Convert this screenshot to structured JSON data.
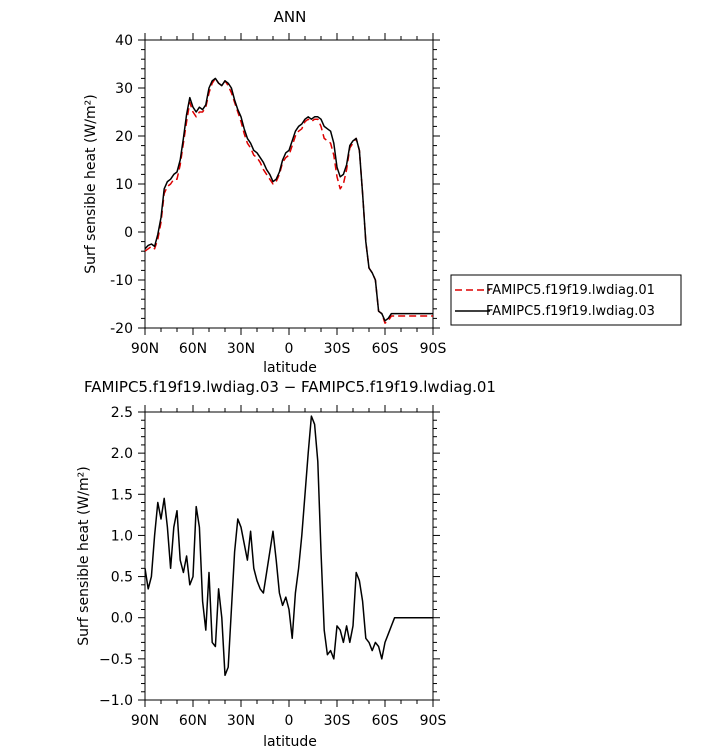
{
  "chart_data": [
    {
      "type": "line",
      "title": "ANN",
      "xlabel": "latitude",
      "ylabel": "Surf sensible heat (W/m²)",
      "xlim": [
        90,
        -90
      ],
      "ylim": [
        -20,
        40
      ],
      "x_ticks": [
        {
          "value": 90,
          "label": "90N"
        },
        {
          "value": 60,
          "label": "60N"
        },
        {
          "value": 30,
          "label": "30N"
        },
        {
          "value": 0,
          "label": "0"
        },
        {
          "value": -30,
          "label": "30S"
        },
        {
          "value": -60,
          "label": "60S"
        },
        {
          "value": -90,
          "label": "90S"
        }
      ],
      "y_ticks": [
        40,
        30,
        20,
        10,
        0,
        -10,
        -20
      ],
      "legend": "right",
      "series": [
        {
          "name": "FAMIPC5.f19f19.lwdiag.01",
          "color": "#dd0000",
          "dash": true,
          "x": [
            90,
            88,
            86,
            84,
            82,
            80,
            78,
            76,
            74,
            72,
            70,
            68,
            66,
            64,
            62,
            60,
            58,
            56,
            54,
            52,
            50,
            48,
            46,
            44,
            42,
            40,
            38,
            36,
            34,
            32,
            30,
            28,
            26,
            24,
            22,
            20,
            18,
            16,
            14,
            12,
            10,
            8,
            6,
            4,
            2,
            0,
            -2,
            -4,
            -6,
            -8,
            -10,
            -12,
            -14,
            -16,
            -18,
            -20,
            -22,
            -24,
            -26,
            -28,
            -30,
            -32,
            -34,
            -36,
            -38,
            -40,
            -42,
            -44,
            -46,
            -48,
            -50,
            -52,
            -54,
            -56,
            -58,
            -60,
            -62,
            -64,
            -66,
            -68,
            -70,
            -72,
            -74,
            -76,
            -78,
            -80,
            -82,
            -84,
            -86,
            -88,
            -90
          ],
          "values": [
            -4.0,
            -3.5,
            -3.0,
            -3.5,
            -1.5,
            2.0,
            8.0,
            9.5,
            10.0,
            11.0,
            11.0,
            14.0,
            18.5,
            23.0,
            27.0,
            25.0,
            24.0,
            25.0,
            25.0,
            26.0,
            29.0,
            31.0,
            32.0,
            31.0,
            30.5,
            31.5,
            30.5,
            29.0,
            27.0,
            25.0,
            23.0,
            20.5,
            18.5,
            17.5,
            16.0,
            15.5,
            14.5,
            13.0,
            12.0,
            11.0,
            10.0,
            10.5,
            12.0,
            14.5,
            15.5,
            16.0,
            18.0,
            20.0,
            21.0,
            21.5,
            23.0,
            23.5,
            23.0,
            23.5,
            23.5,
            22.0,
            19.5,
            19.0,
            18.5,
            16.0,
            11.5,
            9.0,
            10.0,
            13.0,
            17.5,
            18.5,
            19.5,
            17.0,
            8.0,
            -2.0,
            -7.5,
            -8.5,
            -10.0,
            -16.5,
            -17.0,
            -19.0,
            -18.5,
            -17.5,
            -17.5,
            -17.5,
            -17.5,
            -17.5,
            -17.5,
            -17.5,
            -17.5,
            -17.5,
            -17.5,
            -17.5,
            -17.5,
            -17.5,
            -17.5
          ]
        },
        {
          "name": "FAMIPC5.f19f19.lwdiag.03",
          "color": "#000000",
          "dash": false,
          "x": [
            90,
            88,
            86,
            84,
            82,
            80,
            78,
            76,
            74,
            72,
            70,
            68,
            66,
            64,
            62,
            60,
            58,
            56,
            54,
            52,
            50,
            48,
            46,
            44,
            42,
            40,
            38,
            36,
            34,
            32,
            30,
            28,
            26,
            24,
            22,
            20,
            18,
            16,
            14,
            12,
            10,
            8,
            6,
            4,
            2,
            0,
            -2,
            -4,
            -6,
            -8,
            -10,
            -12,
            -14,
            -16,
            -18,
            -20,
            -22,
            -24,
            -26,
            -28,
            -30,
            -32,
            -34,
            -36,
            -38,
            -40,
            -42,
            -44,
            -46,
            -48,
            -50,
            -52,
            -54,
            -56,
            -58,
            -60,
            -62,
            -64,
            -66,
            -68,
            -70,
            -72,
            -74,
            -76,
            -78,
            -80,
            -82,
            -84,
            -86,
            -88,
            -90
          ],
          "values": [
            -3.5,
            -2.8,
            -2.5,
            -3.0,
            -0.5,
            3.0,
            9.0,
            10.5,
            11.0,
            12.0,
            12.5,
            15.0,
            19.5,
            24.5,
            28.0,
            26.0,
            25.0,
            26.0,
            25.5,
            26.5,
            30.0,
            31.5,
            32.0,
            31.0,
            30.5,
            31.5,
            31.0,
            30.0,
            27.5,
            25.5,
            24.0,
            21.5,
            19.5,
            18.5,
            17.0,
            16.5,
            15.5,
            14.5,
            13.0,
            12.0,
            10.5,
            11.0,
            12.5,
            15.0,
            16.5,
            17.0,
            19.0,
            21.0,
            22.0,
            22.5,
            23.5,
            24.0,
            23.5,
            24.0,
            24.0,
            23.5,
            22.0,
            21.5,
            21.0,
            18.5,
            13.5,
            11.5,
            12.0,
            14.0,
            18.0,
            19.0,
            19.5,
            17.0,
            8.0,
            -2.0,
            -7.5,
            -8.5,
            -10.0,
            -16.5,
            -17.0,
            -18.5,
            -18.0,
            -17.0,
            -17.0,
            -17.0,
            -17.0,
            -17.0,
            -17.0,
            -17.0,
            -17.0,
            -17.0,
            -17.0,
            -17.0,
            -17.0,
            -17.0,
            -17.0
          ]
        }
      ]
    },
    {
      "type": "line",
      "title": "FAMIPC5.f19f19.lwdiag.03 − FAMIPC5.f19f19.lwdiag.01",
      "xlabel": "latitude",
      "ylabel": "Surf sensible heat (W/m²)",
      "xlim": [
        90,
        -90
      ],
      "ylim": [
        -1.0,
        2.5
      ],
      "x_ticks": [
        {
          "value": 90,
          "label": "90N"
        },
        {
          "value": 60,
          "label": "60N"
        },
        {
          "value": 30,
          "label": "30N"
        },
        {
          "value": 0,
          "label": "0"
        },
        {
          "value": -30,
          "label": "30S"
        },
        {
          "value": -60,
          "label": "60S"
        },
        {
          "value": -90,
          "label": "90S"
        }
      ],
      "y_ticks": [
        2.5,
        2.0,
        1.5,
        1.0,
        0.5,
        0.0,
        -0.5,
        -1.0
      ],
      "y_tick_labels": [
        "2.5",
        "2.0",
        "1.5",
        "1.0",
        "0.5",
        "0.0",
        "−0.5",
        "−1.0"
      ],
      "series": [
        {
          "color": "#000000",
          "x": [
            90,
            88,
            86,
            84,
            82,
            80,
            78,
            76,
            74,
            72,
            70,
            68,
            66,
            64,
            62,
            60,
            58,
            56,
            54,
            52,
            50,
            48,
            46,
            44,
            42,
            40,
            38,
            36,
            34,
            32,
            30,
            28,
            26,
            24,
            22,
            20,
            18,
            16,
            14,
            12,
            10,
            8,
            6,
            4,
            2,
            0,
            -2,
            -4,
            -6,
            -8,
            -10,
            -12,
            -14,
            -16,
            -18,
            -20,
            -22,
            -24,
            -26,
            -28,
            -30,
            -32,
            -34,
            -36,
            -38,
            -40,
            -42,
            -44,
            -46,
            -48,
            -50,
            -52,
            -54,
            -56,
            -58,
            -60,
            -62,
            -64,
            -66,
            -68,
            -70,
            -72,
            -74,
            -76,
            -78,
            -80,
            -82,
            -84,
            -86,
            -88,
            -90
          ],
          "values": [
            0.6,
            0.35,
            0.5,
            1.0,
            1.4,
            1.2,
            1.45,
            1.1,
            0.6,
            1.1,
            1.3,
            0.7,
            0.55,
            0.75,
            0.4,
            0.5,
            1.35,
            1.1,
            0.2,
            -0.15,
            0.55,
            -0.3,
            -0.35,
            0.35,
            0.0,
            -0.7,
            -0.6,
            0.1,
            0.8,
            1.2,
            1.1,
            0.9,
            0.7,
            1.05,
            0.6,
            0.45,
            0.35,
            0.3,
            0.55,
            0.8,
            1.05,
            0.7,
            0.3,
            0.15,
            0.25,
            0.1,
            -0.25,
            0.3,
            0.6,
            1.0,
            1.5,
            2.0,
            2.45,
            2.35,
            1.9,
            0.8,
            -0.15,
            -0.45,
            -0.4,
            -0.5,
            -0.1,
            -0.15,
            -0.3,
            -0.1,
            -0.3,
            -0.1,
            0.55,
            0.45,
            0.2,
            -0.25,
            -0.3,
            -0.4,
            -0.3,
            -0.35,
            -0.5,
            -0.3,
            -0.2,
            -0.1,
            0.0,
            0.0,
            0.0,
            0.0,
            0.0,
            0.0,
            0.0,
            0.0,
            0.0,
            0.0,
            0.0,
            0.0,
            0.0
          ]
        }
      ]
    }
  ]
}
